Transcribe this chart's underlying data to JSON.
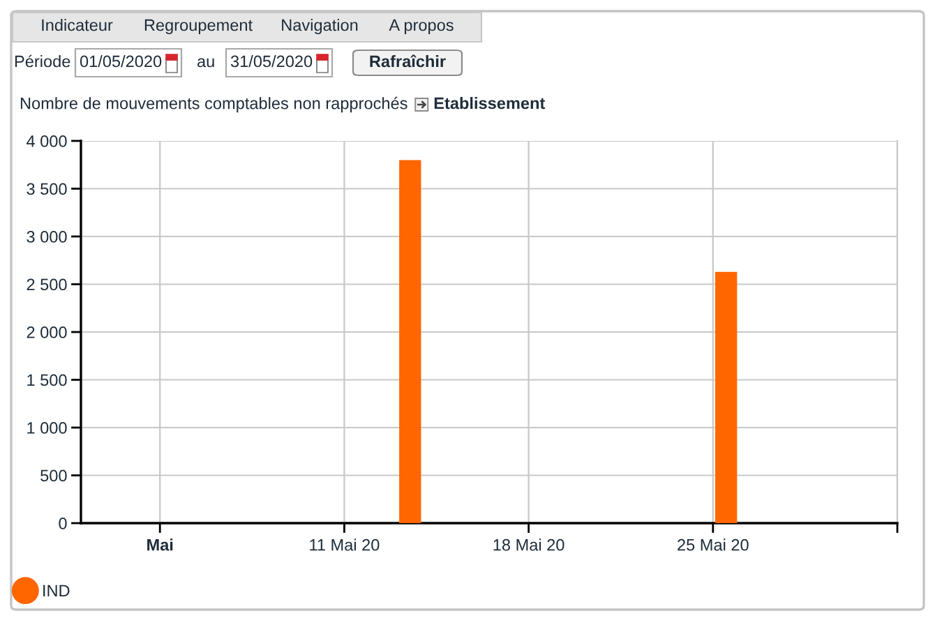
{
  "chart_data": {
    "type": "bar",
    "title": "Nombre de mouvements comptables non rapprochés",
    "subtitle": "Etablissement",
    "annotations": [
      "Indicateur",
      "Regroupement",
      "Navigation",
      "A propos",
      "Période",
      "01/05/2020",
      "au",
      "31/05/2020",
      "Rafraîchir"
    ],
    "x": [
      "2020-05-13T12:00",
      "2020-05-25T12:00"
    ],
    "series": [
      {
        "name": "IND",
        "color": "#ff6600",
        "values": [
          3800,
          2630
        ]
      }
    ],
    "xlim": [
      "2020-05-01",
      "2020-06-01"
    ],
    "xticks": [
      {
        "value": "2020-05-04",
        "label": "Mai"
      },
      {
        "value": "2020-05-11",
        "label": "11 Mai 20"
      },
      {
        "value": "2020-05-18",
        "label": "18 Mai 20"
      },
      {
        "value": "2020-05-25",
        "label": "25 Mai 20"
      },
      {
        "value": "2020-06-01",
        "label": null
      }
    ],
    "ylim": [
      0,
      4000
    ],
    "yticks": [
      0,
      500,
      {
        "value": 1000,
        "label": "1 000"
      },
      {
        "value": 1500,
        "label": "1 500"
      },
      {
        "value": 2000,
        "label": "2 000"
      },
      {
        "value": 2500,
        "label": "2 500"
      },
      {
        "value": 3000,
        "label": "3 000"
      },
      {
        "value": 3500,
        "label": "3 500"
      },
      {
        "value": 4000,
        "label": "4 000"
      }
    ],
    "grid": true,
    "legend": "bottom left"
  }
}
